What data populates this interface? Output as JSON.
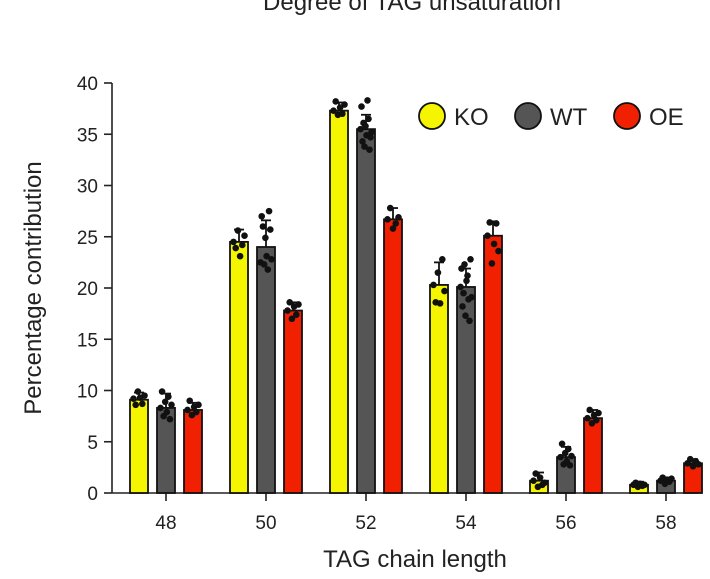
{
  "chart_data": {
    "type": "bar",
    "title": "Degree of TAG unsaturation",
    "xlabel": "TAG chain length",
    "ylabel": "Percentage contribution",
    "categories": [
      "48",
      "50",
      "52",
      "54",
      "56",
      "58"
    ],
    "ylim": [
      0,
      40
    ],
    "yticks": [
      "0",
      "5",
      "10",
      "15",
      "20",
      "25",
      "30",
      "35",
      "40"
    ],
    "legend_position": "top-right",
    "series": [
      {
        "name": "KO",
        "color": "#f5f500",
        "values": [
          9.1,
          24.5,
          37.3,
          20.3,
          1.2,
          0.8
        ],
        "errors": [
          0.7,
          1.2,
          0.8,
          2.2,
          0.8,
          0.3
        ]
      },
      {
        "name": "WT",
        "color": "#555555",
        "values": [
          8.3,
          24.0,
          35.5,
          20.1,
          3.5,
          1.2
        ],
        "errors": [
          1.4,
          2.6,
          1.4,
          1.8,
          1.0,
          0.3
        ]
      },
      {
        "name": "OE",
        "color": "#f02000",
        "values": [
          8.1,
          17.8,
          26.7,
          25.1,
          7.3,
          2.9
        ],
        "errors": [
          0.7,
          0.8,
          1.1,
          1.4,
          0.8,
          0.4
        ]
      }
    ],
    "points": [
      [
        [
          9.2,
          8.6,
          9.9,
          9.3,
          8.7,
          9.5
        ],
        [
          24.5,
          23.9,
          25.6,
          23.1,
          24.2,
          25.1
        ],
        [
          37.3,
          38.2,
          36.9,
          37.6,
          37.0,
          37.9
        ],
        [
          20.3,
          18.6,
          21.5,
          18.5,
          22.8,
          19.7
        ],
        [
          1.2,
          1.9,
          0.6,
          1.5,
          0.8,
          1.0
        ],
        [
          0.8,
          1.0,
          0.6,
          0.9,
          0.7,
          0.8
        ]
      ],
      [
        [
          8.3,
          9.9,
          7.5,
          8.9,
          7.9,
          9.4,
          7.2,
          8.6
        ],
        [
          22.5,
          27.0,
          26.0,
          22.3,
          24.9,
          23.1,
          21.8,
          27.5,
          25.7,
          22.8
        ],
        [
          35.5,
          37.7,
          34.3,
          36.1,
          33.8,
          35.8,
          34.9,
          38.3,
          36.5,
          33.5,
          34.7,
          35.2
        ],
        [
          20.1,
          21.9,
          18.2,
          19.5,
          22.3,
          17.3,
          20.7,
          21.2,
          18.9,
          16.8,
          22.8,
          19.1
        ],
        [
          3.5,
          4.8,
          2.8,
          3.9,
          3.1,
          4.3,
          2.7,
          3.6
        ],
        [
          1.2,
          1.5,
          0.9,
          1.3,
          1.1,
          1.4
        ]
      ],
      [
        [
          8.1,
          9.0,
          7.6,
          8.4,
          7.9,
          8.6
        ],
        [
          17.8,
          18.6,
          17.0,
          18.2,
          17.4,
          18.4
        ],
        [
          26.7,
          27.8,
          25.8,
          26.3,
          26.9
        ],
        [
          25.1,
          26.4,
          22.4,
          24.3,
          26.3,
          23.6
        ],
        [
          7.3,
          8.1,
          6.8,
          7.6,
          7.1,
          7.8
        ],
        [
          2.9,
          3.3,
          2.6,
          3.1,
          2.8
        ]
      ]
    ]
  }
}
